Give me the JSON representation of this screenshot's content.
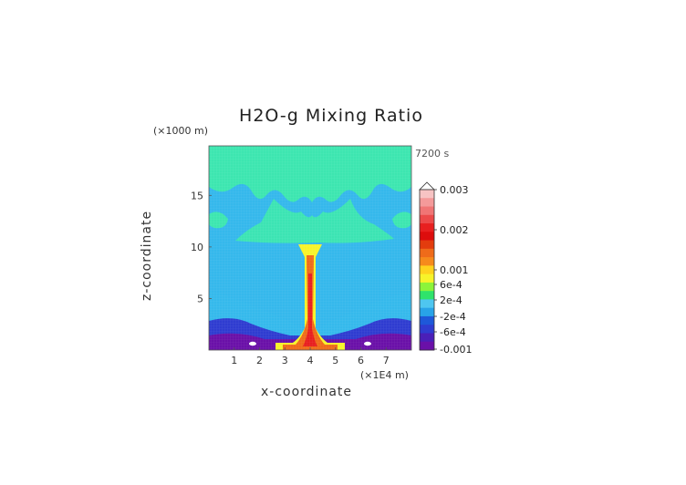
{
  "chart_data": {
    "type": "heatmap",
    "title": "H2O-g Mixing Ratio",
    "xlabel": "x-coordinate",
    "ylabel": "z-coordinate",
    "x_unit": "(×1E4 m)",
    "y_unit": "(×1000 m)",
    "time_label": "7200 s",
    "x_ticks": [
      "1",
      "2",
      "3",
      "4",
      "5",
      "6",
      "7"
    ],
    "y_ticks": [
      "5",
      "10",
      "15"
    ],
    "xlim": [
      0,
      8
    ],
    "ylim": [
      0,
      19.8
    ],
    "colorbar": {
      "labels": [
        "0.003",
        "0.002",
        "0.001",
        "6e-4",
        "2e-4",
        "-2e-4",
        "-6e-4",
        "-0.001"
      ],
      "colors": [
        "#f7c3c3",
        "#f49a9a",
        "#f07575",
        "#ec4a4a",
        "#e82020",
        "#dd0d0d",
        "#e33c0e",
        "#ef6b1a",
        "#f68a1c",
        "#ffd21e",
        "#f7f32a",
        "#8cf43a",
        "#2fe36b",
        "#4ec6f0",
        "#28a3e8",
        "#1e58d9",
        "#2f3cd0",
        "#4a1fb8",
        "#6a10a8"
      ]
    },
    "fields": {
      "background": "#35b8ec",
      "upper_layer": "#3de6b0",
      "plume": "#ef6b1a",
      "plume_core": "#e82020",
      "surface_dry": "#2f3cd0",
      "surface_very_dry": "#6a10a8",
      "surface_moist": "#f7f32a"
    }
  }
}
